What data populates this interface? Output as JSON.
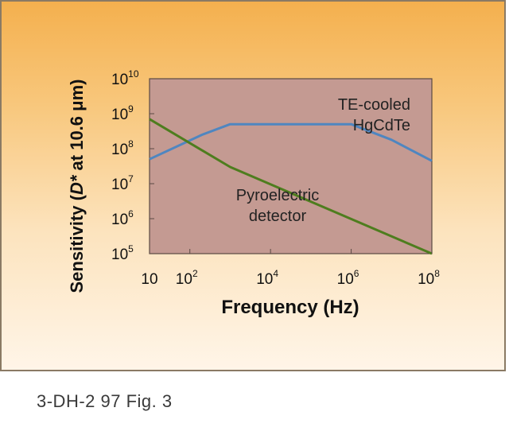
{
  "caption": "3-DH-2 97 Fig. 3",
  "chart_data": {
    "type": "line",
    "xlabel": "Frequency (Hz)",
    "ylabel_parts": [
      "Sensitivity (",
      "D*",
      " at 10.6 μm)"
    ],
    "x_scale": "log",
    "y_scale": "log",
    "xlim": [
      10,
      100000000
    ],
    "ylim": [
      100000,
      10000000000
    ],
    "x_ticks": [
      {
        "value": 10,
        "base": "10",
        "exp": ""
      },
      {
        "value": 100,
        "base": "10",
        "exp": "2"
      },
      {
        "value": 10000,
        "base": "10",
        "exp": "4"
      },
      {
        "value": 1000000,
        "base": "10",
        "exp": "6"
      },
      {
        "value": 100000000,
        "base": "10",
        "exp": "8"
      }
    ],
    "y_ticks": [
      {
        "value": 100000,
        "base": "10",
        "exp": "5"
      },
      {
        "value": 1000000,
        "base": "10",
        "exp": "6"
      },
      {
        "value": 10000000,
        "base": "10",
        "exp": "7"
      },
      {
        "value": 100000000,
        "base": "10",
        "exp": "8"
      },
      {
        "value": 1000000000,
        "base": "10",
        "exp": "9"
      },
      {
        "value": 10000000000,
        "base": "10",
        "exp": "10"
      }
    ],
    "plot_background": "#c49a92",
    "series": [
      {
        "name": "TE-cooled HgCdTe",
        "label_lines": [
          "TE-cooled",
          "HgCdTe"
        ],
        "color": "#4f86c0",
        "points": [
          [
            10,
            50000000
          ],
          [
            200,
            250000000
          ],
          [
            1000,
            500000000
          ],
          [
            1000000,
            500000000
          ],
          [
            10000000,
            180000000
          ],
          [
            100000000,
            45000000
          ]
        ]
      },
      {
        "name": "Pyroelectric detector",
        "label_lines": [
          "Pyroelectric",
          "detector"
        ],
        "color": "#4e7d1e",
        "points": [
          [
            10,
            700000000
          ],
          [
            1000,
            30000000
          ],
          [
            100000000,
            100000
          ]
        ]
      }
    ],
    "grid": false,
    "legend": "none (inline labels)"
  }
}
